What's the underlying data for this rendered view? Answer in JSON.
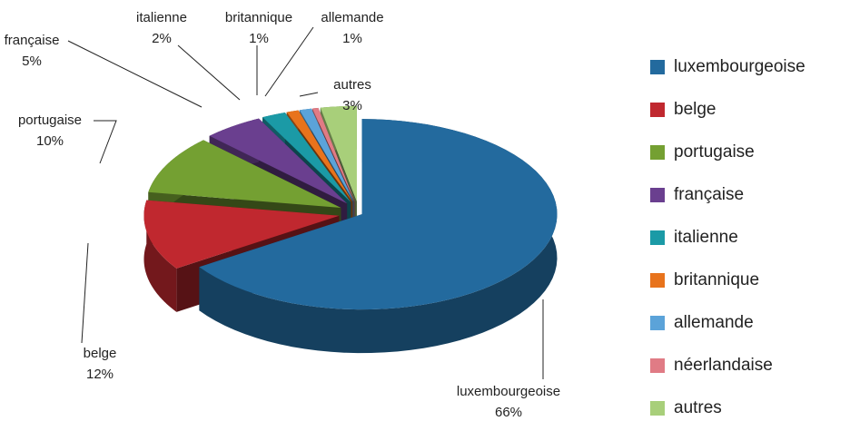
{
  "chart_data": {
    "type": "pie3d",
    "categories": [
      "luxembourgeoise",
      "belge",
      "portugaise",
      "française",
      "italienne",
      "britannique",
      "allemande",
      "néerlandaise",
      "autres"
    ],
    "values": [
      66,
      12,
      10,
      5,
      2,
      1,
      1,
      0.5,
      3
    ],
    "value_labels": [
      "66%",
      "12%",
      "10%",
      "5%",
      "2%",
      "1%",
      "1%",
      null,
      "3%"
    ],
    "colors": [
      "#236a9e",
      "#c0282f",
      "#74a032",
      "#6a3f8f",
      "#1b9aa6",
      "#e8731c",
      "#5ba3d9",
      "#e07b85",
      "#a8cf7a"
    ],
    "legend": "right"
  }
}
